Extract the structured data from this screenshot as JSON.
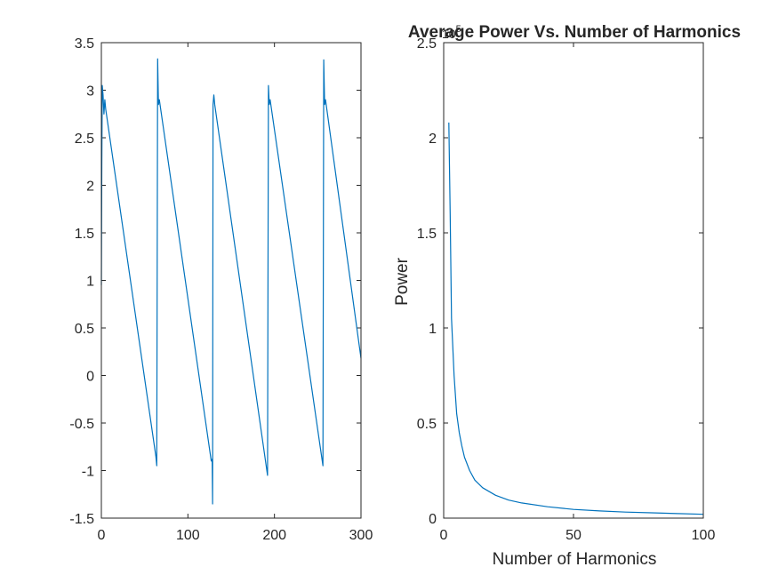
{
  "colors": {
    "series": "#0072bd",
    "axis": "#262626",
    "background": "#ffffff"
  },
  "chart_data": [
    {
      "type": "line",
      "title": "",
      "xlabel": "",
      "ylabel": "",
      "xlim": [
        0,
        300
      ],
      "ylim": [
        -1.5,
        3.5
      ],
      "grid": false,
      "x_ticks": [
        0,
        100,
        200,
        300
      ],
      "x_tick_labels": [
        "0",
        "100",
        "200",
        "300"
      ],
      "y_ticks": [
        -1.5,
        -1,
        -0.5,
        0,
        0.5,
        1,
        1.5,
        2,
        2.5,
        3,
        3.5
      ],
      "y_tick_labels": [
        "-1.5",
        "-1",
        "-0.5",
        "0",
        "0.5",
        "1",
        "1.5",
        "2",
        "2.5",
        "3",
        "3.5"
      ],
      "series": [
        {
          "x": [
            0,
            0.5,
            1,
            2,
            3,
            4,
            5,
            63,
            64,
            65,
            66,
            67,
            127,
            128,
            128.5,
            129,
            130,
            131,
            192,
            193,
            194,
            195,
            256,
            257,
            258,
            259,
            300
          ],
          "y": [
            0.95,
            2.2,
            3.05,
            2.95,
            2.75,
            2.9,
            2.8,
            -0.85,
            -0.95,
            3.33,
            2.85,
            2.9,
            -0.9,
            -0.88,
            -1.35,
            2.85,
            2.95,
            2.85,
            -1.05,
            3.05,
            2.85,
            2.9,
            -0.95,
            3.32,
            2.85,
            2.9,
            0.18
          ]
        }
      ]
    },
    {
      "type": "line",
      "title": "Average Power Vs. Number of Harmonics",
      "xlabel": "Number of Harmonics",
      "ylabel": "Power",
      "xlim": [
        0,
        100
      ],
      "ylim": [
        0,
        2.5
      ],
      "y_exponent_label": "10",
      "y_exponent_power": "5",
      "grid": false,
      "x_ticks": [
        0,
        50,
        100
      ],
      "x_tick_labels": [
        "0",
        "50",
        "100"
      ],
      "y_ticks": [
        0,
        0.5,
        1,
        1.5,
        2,
        2.5
      ],
      "y_tick_labels": [
        "0",
        "0.5",
        "1",
        "1.5",
        "2",
        "2.5"
      ],
      "series": [
        {
          "x": [
            2,
            2.5,
            3,
            4,
            5,
            6,
            7,
            8,
            10,
            12,
            15,
            20,
            25,
            30,
            40,
            50,
            60,
            70,
            80,
            90,
            100
          ],
          "y": [
            2.08,
            1.6,
            1.05,
            0.75,
            0.55,
            0.45,
            0.38,
            0.32,
            0.25,
            0.2,
            0.16,
            0.12,
            0.095,
            0.08,
            0.06,
            0.046,
            0.038,
            0.032,
            0.028,
            0.024,
            0.02
          ]
        }
      ]
    }
  ]
}
